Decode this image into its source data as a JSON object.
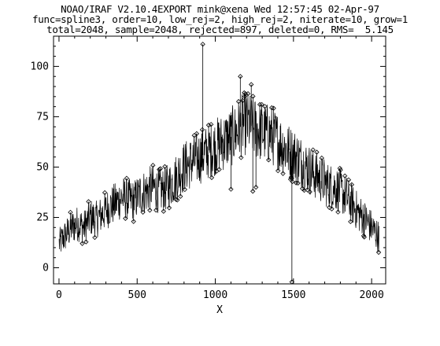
{
  "header": {
    "line1": "NOAO/IRAF V2.10.4EXPORT mink@xena Wed 12:57:45 02-Apr-97",
    "line2": "func=spline3, order=10, low_rej=2, high_rej=2, niterate=10, grow=1",
    "line3": "total=2048, sample=2048, rejected=897, deleted=0, RMS=  5.145"
  },
  "chart_data": {
    "type": "line",
    "title": "",
    "xlabel": "X",
    "ylabel": "",
    "xlim": [
      -35,
      2090
    ],
    "ylim": [
      -8,
      115
    ],
    "xticks": [
      0,
      500,
      1000,
      1500,
      2000
    ],
    "yticks": [
      0,
      25,
      50,
      75,
      100
    ],
    "xtick_labels": [
      "0",
      "500",
      "1000",
      "1500",
      "2000"
    ],
    "ytick_labels": [
      "0",
      "25",
      "50",
      "75",
      "100"
    ],
    "grid": false,
    "series": [
      {
        "x": [
          1,
          40,
          80,
          120,
          160,
          200,
          240,
          280,
          320,
          360,
          400,
          440,
          480,
          520,
          560,
          600,
          640,
          680,
          720,
          760,
          800,
          840,
          880,
          920,
          960,
          1000,
          1040,
          1080,
          1120,
          1160,
          1200,
          1240,
          1280,
          1320,
          1360,
          1400,
          1440,
          1480,
          1520,
          1560,
          1600,
          1640,
          1680,
          1720,
          1760,
          1800,
          1840,
          1880,
          1920,
          1960,
          2000,
          2048
        ],
        "y": [
          12,
          16,
          20,
          22,
          20,
          25,
          24,
          27,
          30,
          32,
          35,
          34,
          33,
          37,
          38,
          40,
          38,
          39,
          42,
          46,
          50,
          52,
          54,
          56,
          58,
          60,
          62,
          64,
          66,
          70,
          72,
          70,
          68,
          67,
          66,
          63,
          60,
          57,
          55,
          52,
          49,
          46,
          44,
          41,
          40,
          38,
          35,
          31,
          27,
          24,
          20,
          15
        ]
      },
      {
        "name": "rejected",
        "x": [
          920,
          1160,
          1175,
          1230,
          1490,
          1240,
          1260,
          1100
        ],
        "y": [
          111,
          95,
          83,
          91,
          -7,
          38,
          40,
          39
        ]
      }
    ]
  }
}
